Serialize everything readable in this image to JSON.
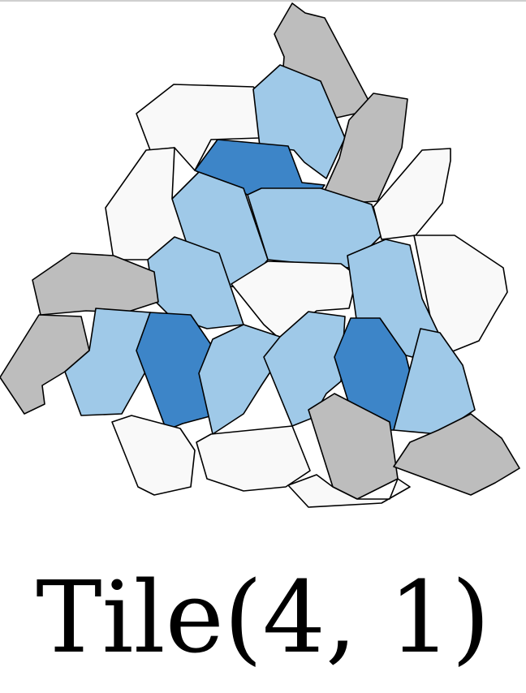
{
  "caption": "Tile(4, 1)",
  "colors": {
    "white": "#f9f9f9",
    "gray": "#bdbdbd",
    "light_blue": "#9fc9e8",
    "dark_blue": "#3d85c8",
    "outline": "#000000"
  },
  "tile_fills": [
    "gray",
    "white",
    "light_blue",
    "gray",
    "dark_blue",
    "light_blue",
    "light_blue",
    "white",
    "light_blue",
    "white",
    "white",
    "gray",
    "gray",
    "light_blue",
    "dark_blue",
    "light_blue",
    "white",
    "light_blue",
    "white",
    "light_blue",
    "dark_blue",
    "light_blue",
    "white",
    "gray",
    "gray",
    "white"
  ]
}
